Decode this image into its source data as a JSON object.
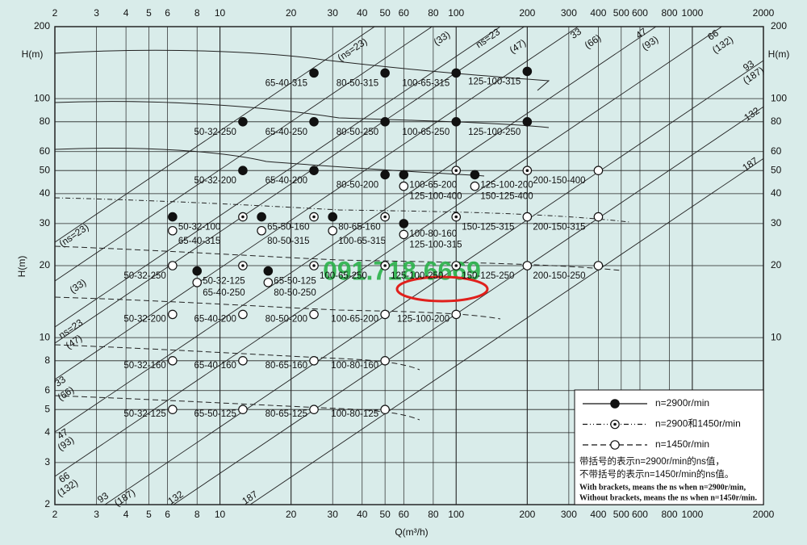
{
  "chart_data": {
    "type": "scatter",
    "x_label": "Q(m³/h)",
    "y_label": "H(m)",
    "log_x": true,
    "log_y": true,
    "grid": true,
    "legend": "lower right",
    "xlim": [
      2,
      2000
    ],
    "ylim": [
      2,
      200
    ],
    "xticks": [
      2,
      3,
      4,
      5,
      6,
      8,
      10,
      20,
      30,
      40,
      50,
      60,
      80,
      100,
      200,
      300,
      400,
      500,
      600,
      800,
      1000,
      2000
    ],
    "yticks": [
      2,
      3,
      4,
      5,
      6,
      8,
      10,
      20,
      30,
      40,
      50,
      60,
      80,
      100,
      200
    ],
    "series": [
      {
        "name": "n=2900r/min",
        "marker": "filled",
        "line_style": "solid",
        "color": "#111111",
        "x": [
          25,
          50,
          100,
          200,
          12.5,
          25,
          50,
          100,
          200,
          12.5,
          25,
          50,
          60,
          120,
          6.3,
          15,
          30,
          60,
          8,
          16
        ],
        "values": [
          128,
          128,
          128,
          130,
          80,
          80,
          80,
          80,
          80,
          50,
          50,
          48,
          48,
          48,
          32,
          32,
          32,
          30,
          19,
          19
        ],
        "labels": [
          "65-40-315",
          "80-50-315",
          "100-65-315",
          "125-100-315",
          "50-32-250",
          "65-40-250",
          "80-50-250",
          "100-65-250",
          "125-100-250",
          "50-32-200",
          "65-40-200",
          "80-50-200",
          "100-65-200",
          "125-100-200",
          "50-32-100",
          "65-50-160",
          "80-65-160",
          "100-80-160",
          "50-32-125",
          "65-50-125"
        ]
      },
      {
        "name": "n=2900和1450r/min",
        "marker": "dotted",
        "line_style": "dashdot",
        "color": "#111111",
        "x": [
          12.5,
          25,
          50,
          100,
          12.5,
          25,
          50,
          100,
          100,
          200
        ],
        "values": [
          32,
          32,
          32,
          32,
          20,
          20,
          20,
          20,
          50,
          50
        ],
        "labels": [
          null,
          null,
          null,
          "150-125-315",
          null,
          "100-65-250",
          "125-100-250",
          "150-125-250",
          null,
          "200-150-400"
        ]
      },
      {
        "name": "n=1450r/min",
        "marker": "open",
        "line_style": "dashed",
        "color": "#111111",
        "x": [
          6.3,
          15,
          30,
          60,
          60,
          120,
          400,
          200,
          400,
          6.3,
          8,
          16,
          200,
          400,
          6.3,
          12.5,
          25,
          50,
          100,
          6.3,
          12.5,
          25,
          50,
          6.3,
          12.5,
          25,
          50
        ],
        "values": [
          28,
          28,
          28,
          27,
          43,
          43,
          50,
          32,
          32,
          20,
          17,
          17,
          20,
          20,
          12.5,
          12.5,
          12.5,
          12.5,
          12.5,
          8,
          8,
          8,
          8,
          5,
          5,
          5,
          5
        ],
        "labels": [
          "65-40-315",
          "80-50-315",
          "100-65-315",
          "125-100-315",
          "125-100-400",
          "150-125-400",
          null,
          "200-150-315",
          null,
          "50-32-250",
          "65-40-250",
          "80-50-250",
          "200-150-250",
          null,
          "50-32-200",
          "65-40-200",
          "80-50-200",
          "100-65-200",
          "125-100-200",
          "50-32-160",
          "65-40-160",
          "80-65-160",
          "100-80-160",
          "50-32-125",
          "65-50-125",
          "80-65-125",
          "100-80-125"
        ]
      }
    ],
    "ns_labels": [
      "(ns=23)",
      "(33)",
      "ns=23",
      "(47)",
      "33",
      "(66)",
      "47",
      "(93)",
      "66",
      "(132)",
      "93",
      "(187)",
      "132",
      "187",
      "(ns=23)",
      "(33)",
      "ns=23",
      "(47)",
      "33",
      "(66)",
      "47",
      "(93)",
      "66",
      "(132)",
      "93",
      "(187)",
      "132",
      "187"
    ],
    "notes": [
      "带括号的表示n=2900r/min的ns值，",
      "不带括号的表示n=1450r/min的ns值。",
      "With brackets, means the ns when n=2900r/min,",
      "Without brackets, means the ns when n=1450r/min."
    ],
    "watermark": "091.718.6669"
  }
}
